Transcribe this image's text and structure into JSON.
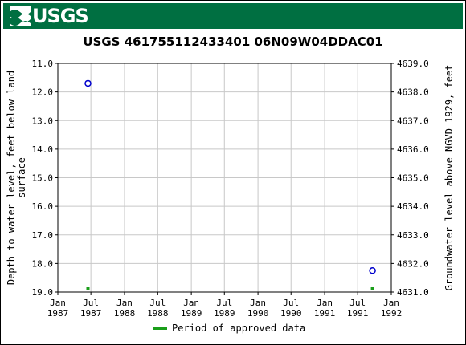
{
  "banner": {
    "logo_text": "USGS",
    "logo_icon": "usgs-wave-icon",
    "color": "#006f41"
  },
  "chart_data": {
    "type": "scatter",
    "title": "USGS 461755112433401 06N09W04DDAC01",
    "ylabel_left": [
      "Depth to water level, feet below land",
      "surface"
    ],
    "ylabel_right": "Groundwater level above NGVD 1929, feet",
    "x_ticks": [
      {
        "date": "1987-01-01",
        "line1": "Jan",
        "line2": "1987"
      },
      {
        "date": "1987-07-01",
        "line1": "Jul",
        "line2": "1987"
      },
      {
        "date": "1988-01-01",
        "line1": "Jan",
        "line2": "1988"
      },
      {
        "date": "1988-07-01",
        "line1": "Jul",
        "line2": "1988"
      },
      {
        "date": "1989-01-01",
        "line1": "Jan",
        "line2": "1989"
      },
      {
        "date": "1989-07-01",
        "line1": "Jul",
        "line2": "1989"
      },
      {
        "date": "1990-01-01",
        "line1": "Jan",
        "line2": "1990"
      },
      {
        "date": "1990-07-01",
        "line1": "Jul",
        "line2": "1990"
      },
      {
        "date": "1991-01-01",
        "line1": "Jan",
        "line2": "1991"
      },
      {
        "date": "1991-07-01",
        "line1": "Jul",
        "line2": "1991"
      },
      {
        "date": "1992-01-01",
        "line1": "Jan",
        "line2": "1992"
      }
    ],
    "xlim": [
      "1987-01-01",
      "1992-01-01"
    ],
    "ylim_left": [
      11.0,
      19.0
    ],
    "y_ticks_left": [
      "11.0",
      "12.0",
      "13.0",
      "14.0",
      "15.0",
      "16.0",
      "17.0",
      "18.0",
      "19.0"
    ],
    "ylim_right": [
      4639.0,
      4631.0
    ],
    "y_ticks_right": [
      "4639.0",
      "4638.0",
      "4637.0",
      "4636.0",
      "4635.0",
      "4634.0",
      "4633.0",
      "4632.0",
      "4631.0"
    ],
    "y_inverted": true,
    "grid": true,
    "series": [
      {
        "marker": "open-circle",
        "color": "#0000cc",
        "points": [
          {
            "x": "1987-06-15",
            "y": 11.7
          },
          {
            "x": "1991-09-20",
            "y": 18.25
          }
        ]
      }
    ],
    "approved_periods": [
      {
        "x": "1987-06-15"
      },
      {
        "x": "1991-09-20"
      }
    ],
    "legend": {
      "label": "Period of approved data",
      "color": "#1a9e1a",
      "placement": "bottom-center"
    }
  }
}
